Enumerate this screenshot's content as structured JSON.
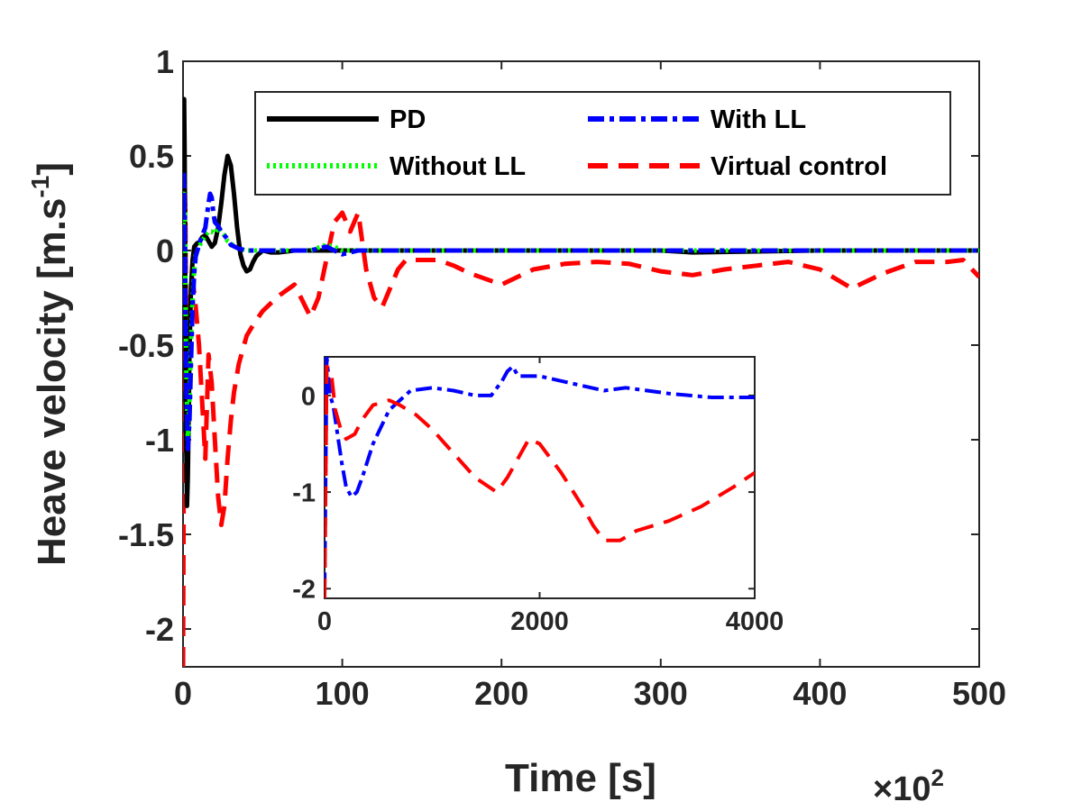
{
  "chart_data": {
    "type": "line",
    "ylabel": "Heave velocity [m.s",
    "ylabel_sup": "-1",
    "ylabel_close": "]",
    "xlabel": "Time [s]",
    "x_multiplier_label": "×10",
    "x_multiplier_exp": "2",
    "xlim": [
      0,
      500
    ],
    "ylim": [
      -2.2,
      1
    ],
    "xticks": [
      0,
      100,
      200,
      300,
      400,
      500
    ],
    "yticks": [
      -2,
      -1.5,
      -1,
      -0.5,
      0,
      0.5,
      1
    ],
    "xtick_labels": [
      "0",
      "100",
      "200",
      "300",
      "400",
      "500"
    ],
    "ytick_labels": [
      "-2",
      "-1.5",
      "-1",
      "-0.5",
      "0",
      "0.5",
      "1"
    ],
    "legend_position": "top-right",
    "series": [
      {
        "name": "PD",
        "color": "#000000",
        "style": "solid",
        "x": [
          0,
          0.3,
          0.7,
          1.0,
          1.5,
          2,
          2.5,
          3,
          3.5,
          4,
          5,
          6,
          7,
          8,
          9,
          10,
          12,
          14,
          16,
          18,
          20,
          22,
          24,
          26,
          28,
          30,
          32,
          34,
          36,
          38,
          40,
          42,
          44,
          46,
          50,
          55,
          60,
          70,
          80,
          100,
          150,
          200,
          300,
          320,
          400,
          500
        ],
        "y": [
          0,
          0.6,
          0.8,
          0.5,
          -0.3,
          -1.0,
          -1.35,
          -1.2,
          -0.9,
          -0.55,
          -0.2,
          -0.05,
          0.02,
          0.03,
          0.04,
          0.04,
          0.07,
          0.08,
          0.05,
          0.02,
          0.04,
          0.12,
          0.25,
          0.4,
          0.5,
          0.45,
          0.3,
          0.12,
          -0.02,
          -0.08,
          -0.11,
          -0.1,
          -0.06,
          -0.03,
          0,
          -0.01,
          -0.01,
          0,
          0,
          0,
          0,
          0,
          0,
          -0.01,
          0,
          0
        ]
      },
      {
        "name": "Without LL",
        "color": "#00ff00",
        "style": "dotted",
        "x": [
          0,
          0.5,
          1,
          1.5,
          2,
          3,
          4,
          5,
          6,
          7,
          8,
          10,
          12,
          14,
          16,
          18,
          20,
          22,
          24,
          26,
          28,
          30,
          32,
          35,
          40,
          50,
          60,
          80,
          90,
          95,
          100,
          120,
          500
        ],
        "y": [
          0,
          0.3,
          0.25,
          -0.2,
          -0.6,
          -1.0,
          -0.8,
          -0.5,
          -0.25,
          -0.1,
          -0.02,
          0.02,
          0.05,
          0.08,
          0.1,
          0.1,
          0.09,
          0.12,
          0.1,
          0.08,
          0.05,
          0.04,
          0.02,
          0.01,
          0,
          0,
          0,
          0,
          0.03,
          0.02,
          0,
          0,
          0
        ]
      },
      {
        "name": "With LL",
        "color": "#0000ff",
        "style": "dashdot",
        "x": [
          0,
          0.5,
          1,
          1.5,
          2,
          3,
          4,
          5,
          6,
          7,
          8,
          10,
          12,
          14,
          16,
          17,
          18,
          19,
          20,
          22,
          24,
          26,
          28,
          30,
          35,
          40,
          50,
          60,
          80,
          90,
          95,
          100,
          110,
          500
        ],
        "y": [
          0,
          0.4,
          0.2,
          -0.3,
          -0.7,
          -1.05,
          -0.9,
          -0.6,
          -0.3,
          -0.12,
          -0.03,
          0.03,
          0.08,
          0.12,
          0.25,
          0.3,
          0.28,
          0.2,
          0.15,
          0.13,
          0.1,
          0.08,
          0.06,
          0.03,
          0.01,
          0,
          0,
          0,
          0,
          0.02,
          0,
          -0.02,
          0,
          0
        ]
      },
      {
        "name": "Virtual control",
        "color": "#ff0000",
        "style": "dashed",
        "x": [
          0,
          0.5,
          1,
          1.5,
          2,
          3,
          4,
          5,
          6,
          8,
          10,
          12,
          14,
          16,
          18,
          20,
          22,
          24,
          26,
          28,
          30,
          32,
          35,
          40,
          45,
          50,
          55,
          60,
          70,
          80,
          85,
          90,
          95,
          100,
          105,
          110,
          115,
          120,
          125,
          130,
          135,
          140,
          145,
          150,
          160,
          170,
          180,
          200,
          220,
          240,
          260,
          280,
          300,
          320,
          340,
          360,
          380,
          400,
          420,
          440,
          460,
          480,
          490,
          500
        ],
        "y": [
          -2.2,
          -1.0,
          0.35,
          0.2,
          -0.5,
          -0.45,
          -0.3,
          -0.2,
          -0.15,
          -0.3,
          -0.5,
          -0.8,
          -1.1,
          -0.55,
          -0.7,
          -1.0,
          -1.3,
          -1.45,
          -1.35,
          -1.1,
          -0.9,
          -0.75,
          -0.6,
          -0.45,
          -0.38,
          -0.32,
          -0.28,
          -0.24,
          -0.18,
          -0.35,
          -0.25,
          -0.05,
          0.15,
          0.2,
          0.1,
          0.2,
          -0.1,
          -0.25,
          -0.3,
          -0.2,
          -0.1,
          -0.05,
          -0.05,
          -0.05,
          -0.05,
          -0.08,
          -0.12,
          -0.18,
          -0.1,
          -0.07,
          -0.06,
          -0.07,
          -0.11,
          -0.13,
          -0.1,
          -0.08,
          -0.06,
          -0.1,
          -0.2,
          -0.12,
          -0.06,
          -0.06,
          -0.05,
          -0.14
        ]
      }
    ],
    "inset": {
      "xlim": [
        0,
        4000
      ],
      "ylim": [
        -2.1,
        0.4
      ],
      "xticks": [
        0,
        2000,
        4000
      ],
      "yticks": [
        -2,
        -1,
        0
      ],
      "xtick_labels": [
        "0",
        "2000",
        "4000"
      ],
      "ytick_labels": [
        "-2",
        "-1",
        "0"
      ],
      "series": [
        {
          "name": "With LL",
          "color": "#0000ff",
          "style": "dashdot",
          "x": [
            0,
            20,
            50,
            80,
            120,
            160,
            200,
            250,
            300,
            350,
            450,
            600,
            800,
            1000,
            1200,
            1400,
            1550,
            1650,
            1700,
            1750,
            1800,
            2000,
            2200,
            2400,
            2600,
            2800,
            3000,
            3200,
            3400,
            3600,
            3800,
            4000
          ],
          "y": [
            -2.0,
            0.4,
            0.0,
            -0.1,
            -0.4,
            -0.7,
            -0.95,
            -1.05,
            -1.0,
            -0.85,
            -0.5,
            -0.15,
            0.05,
            0.08,
            0.05,
            0.0,
            0.0,
            0.15,
            0.25,
            0.3,
            0.2,
            0.2,
            0.15,
            0.1,
            0.05,
            0.08,
            0.05,
            0.02,
            0.0,
            -0.02,
            -0.02,
            -0.02
          ]
        },
        {
          "name": "Virtual control",
          "color": "#ff0000",
          "style": "dashed",
          "x": [
            0,
            20,
            60,
            100,
            150,
            200,
            280,
            350,
            450,
            600,
            700,
            850,
            1000,
            1200,
            1400,
            1600,
            1700,
            1800,
            1900,
            2000,
            2200,
            2400,
            2500,
            2600,
            2750,
            2900,
            3200,
            3500,
            3800,
            4000
          ],
          "y": [
            -2.1,
            0.3,
            0.25,
            -0.15,
            -0.35,
            -0.45,
            -0.4,
            -0.25,
            -0.1,
            -0.05,
            -0.1,
            -0.2,
            -0.35,
            -0.6,
            -0.85,
            -1.0,
            -0.85,
            -0.65,
            -0.45,
            -0.5,
            -0.8,
            -1.15,
            -1.35,
            -1.5,
            -1.5,
            -1.4,
            -1.3,
            -1.15,
            -0.95,
            -0.8
          ]
        }
      ]
    }
  }
}
